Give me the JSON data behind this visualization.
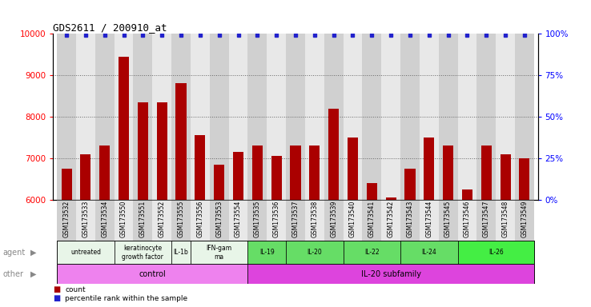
{
  "title": "GDS2611 / 200910_at",
  "samples": [
    "GSM173532",
    "GSM173533",
    "GSM173534",
    "GSM173550",
    "GSM173551",
    "GSM173552",
    "GSM173555",
    "GSM173556",
    "GSM173553",
    "GSM173554",
    "GSM173535",
    "GSM173536",
    "GSM173537",
    "GSM173538",
    "GSM173539",
    "GSM173540",
    "GSM173541",
    "GSM173542",
    "GSM173543",
    "GSM173544",
    "GSM173545",
    "GSM173546",
    "GSM173547",
    "GSM173548",
    "GSM173549"
  ],
  "counts": [
    6750,
    7100,
    7300,
    9450,
    8350,
    8350,
    8800,
    7550,
    6850,
    7150,
    7300,
    7050,
    7300,
    7300,
    8200,
    7500,
    6400,
    6050,
    6750,
    7500,
    7300,
    6250,
    7300,
    7100,
    7000
  ],
  "agent_groups": [
    {
      "label": "untreated",
      "start": 0,
      "end": 2,
      "color": "#e8f5e8"
    },
    {
      "label": "keratinocyte\ngrowth factor",
      "start": 3,
      "end": 5,
      "color": "#e8f5e8"
    },
    {
      "label": "IL-1b",
      "start": 6,
      "end": 6,
      "color": "#e8f5e8"
    },
    {
      "label": "IFN-gam\nma",
      "start": 7,
      "end": 9,
      "color": "#e8f5e8"
    },
    {
      "label": "IL-19",
      "start": 10,
      "end": 11,
      "color": "#66dd66"
    },
    {
      "label": "IL-20",
      "start": 12,
      "end": 14,
      "color": "#66dd66"
    },
    {
      "label": "IL-22",
      "start": 15,
      "end": 17,
      "color": "#66dd66"
    },
    {
      "label": "IL-24",
      "start": 18,
      "end": 20,
      "color": "#66dd66"
    },
    {
      "label": "IL-26",
      "start": 21,
      "end": 24,
      "color": "#44ee44"
    }
  ],
  "other_groups": [
    {
      "label": "control",
      "start": 0,
      "end": 9,
      "color": "#ee82ee"
    },
    {
      "label": "IL-20 subfamily",
      "start": 10,
      "end": 24,
      "color": "#dd44dd"
    }
  ],
  "bar_color": "#aa0000",
  "dot_color": "#2222cc",
  "ylim_left": [
    6000,
    10000
  ],
  "ylim_right": [
    0,
    100
  ],
  "yticks_left": [
    6000,
    7000,
    8000,
    9000,
    10000
  ],
  "yticks_right": [
    0,
    25,
    50,
    75,
    100
  ],
  "col_colors_even": "#d0d0d0",
  "col_colors_odd": "#e8e8e8"
}
